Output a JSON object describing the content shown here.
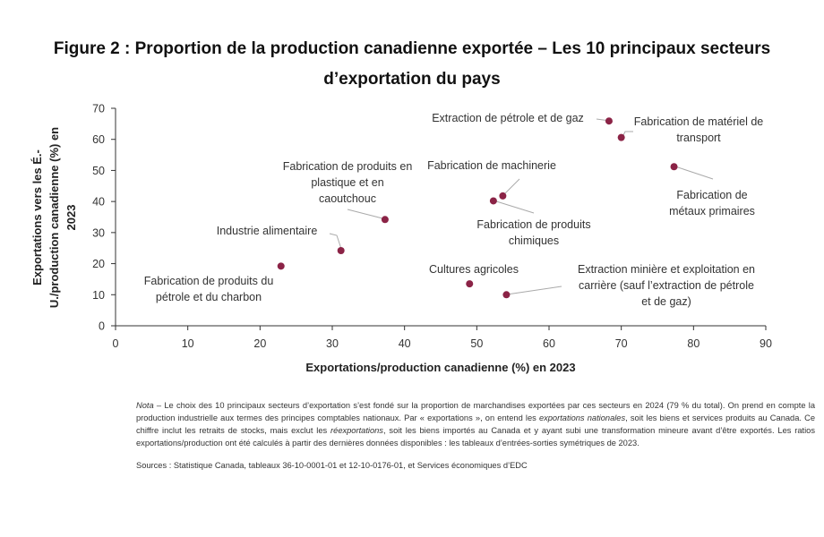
{
  "title_line1": "Figure 2 : Proportion de la production canadienne exportée – Les 10 principaux secteurs",
  "title_line2": "d’exportation du pays",
  "chart_data": {
    "type": "scatter",
    "xlabel": "Exportations/production canadienne (%) en 2023",
    "ylabel_lines": [
      "Exportations vers les É.-",
      "U./production canadienne (%) en",
      "2023"
    ],
    "xlim": [
      0,
      90
    ],
    "ylim": [
      0,
      70
    ],
    "xticks": [
      0,
      10,
      20,
      30,
      40,
      50,
      60,
      70,
      80,
      90
    ],
    "yticks": [
      0,
      10,
      20,
      30,
      40,
      50,
      60,
      70
    ],
    "grid": false,
    "marker_color": "#8B2346",
    "points": [
      {
        "label_lines": [
          "Fabrication de produits du",
          "pétrole et du charbon"
        ],
        "x": 22.9,
        "y": 19.2
      },
      {
        "label_lines": [
          "Industrie alimentaire"
        ],
        "x": 31.2,
        "y": 24.2
      },
      {
        "label_lines": [
          "Fabrication de produits en",
          "plastique et en",
          "caoutchouc"
        ],
        "x": 37.3,
        "y": 34.2
      },
      {
        "label_lines": [
          "Fabrication de machinerie"
        ],
        "x": 53.6,
        "y": 41.8
      },
      {
        "label_lines": [
          "Fabrication de produits",
          "chimiques"
        ],
        "x": 52.3,
        "y": 40.2
      },
      {
        "label_lines": [
          "Cultures agricoles"
        ],
        "x": 49.0,
        "y": 13.5
      },
      {
        "label_lines": [
          "Extraction minière et exploitation en",
          "carrière (sauf l’extraction de pétrole",
          "et de gaz)"
        ],
        "x": 54.1,
        "y": 10.0
      },
      {
        "label_lines": [
          "Extraction de pétrole et de gaz"
        ],
        "x": 68.3,
        "y": 65.9
      },
      {
        "label_lines": [
          "Fabrication de matériel de",
          "transport"
        ],
        "x": 70.0,
        "y": 60.6
      },
      {
        "label_lines": [
          "Fabrication de",
          "métaux primaires"
        ],
        "x": 77.3,
        "y": 51.2
      }
    ]
  },
  "note_prefix": "Nota",
  "note_parts": [
    " – Le choix des 10 principaux secteurs d’exportation s’est fondé sur la proportion de marchandises exportées par ces secteurs en 2024 (79 % du total). On prend en compte la production industrielle aux termes des principes comptables nationaux. Par « exportations », on entend les ",
    "exportations nationales",
    ", soit les biens et services produits au Canada. Ce chiffre inclut les retraits de stocks, mais exclut les ",
    "réexportations",
    ", soit les biens importés au Canada et y ayant subi une transformation mineure avant d’être exportés. Les ratios exportations/production ont été calculés à partir des dernières données disponibles : les tableaux d’entrées-sorties symétriques de 2023."
  ],
  "sources": "Sources : Statistique Canada, tableaux 36-10-0001-01 et 12-10-0176-01, et Services économiques d’EDC"
}
